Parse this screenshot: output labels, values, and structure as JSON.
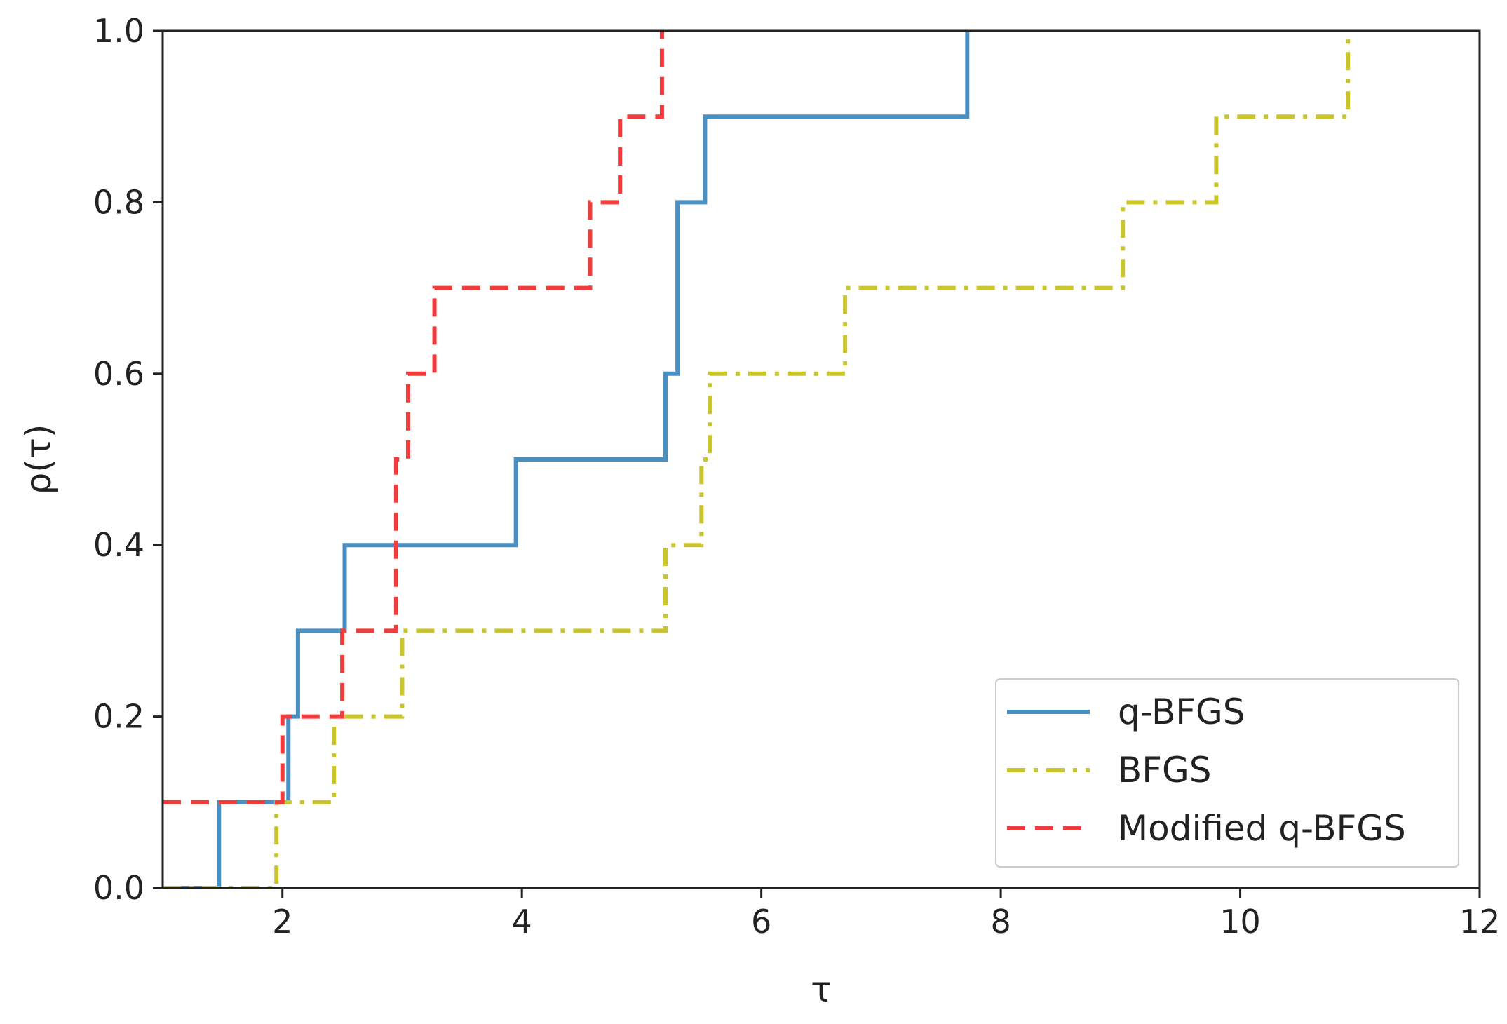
{
  "chart_data": {
    "type": "line",
    "step": true,
    "title": "",
    "xlabel": "τ",
    "ylabel": "ρ(τ)",
    "xlim": [
      1,
      12
    ],
    "ylim": [
      0,
      1
    ],
    "xticks": [
      2,
      4,
      6,
      8,
      10,
      12
    ],
    "yticks": [
      0.0,
      0.2,
      0.4,
      0.6,
      0.8,
      1.0
    ],
    "xtick_labels": [
      "2",
      "4",
      "6",
      "8",
      "10",
      "12"
    ],
    "ytick_labels": [
      "0.0",
      "0.2",
      "0.4",
      "0.6",
      "0.8",
      "1.0"
    ],
    "grid": false,
    "legend_position": "lower-right",
    "series": [
      {
        "name": "q-BFGS",
        "color": "#4a8fc4",
        "style": "solid",
        "x": [
          1.0,
          1.47,
          2.05,
          2.13,
          2.52,
          3.95,
          5.2,
          5.3,
          5.53,
          7.72
        ],
        "y": [
          0.0,
          0.1,
          0.2,
          0.3,
          0.4,
          0.5,
          0.6,
          0.8,
          0.9,
          1.0
        ]
      },
      {
        "name": "BFGS",
        "color": "#c9c52a",
        "style": "dashdot",
        "x": [
          1.0,
          1.95,
          2.43,
          3.0,
          5.2,
          5.5,
          5.57,
          6.7,
          9.02,
          9.8,
          10.9
        ],
        "y": [
          0.0,
          0.1,
          0.2,
          0.3,
          0.4,
          0.5,
          0.6,
          0.7,
          0.8,
          0.9,
          1.0
        ]
      },
      {
        "name": "Modified q-BFGS",
        "color": "#f23c3c",
        "style": "dashed",
        "x": [
          1.0,
          2.0,
          2.5,
          2.95,
          3.05,
          3.27,
          4.57,
          4.82,
          5.17
        ],
        "y": [
          0.1,
          0.2,
          0.3,
          0.5,
          0.6,
          0.7,
          0.8,
          0.9,
          1.0
        ]
      }
    ]
  }
}
